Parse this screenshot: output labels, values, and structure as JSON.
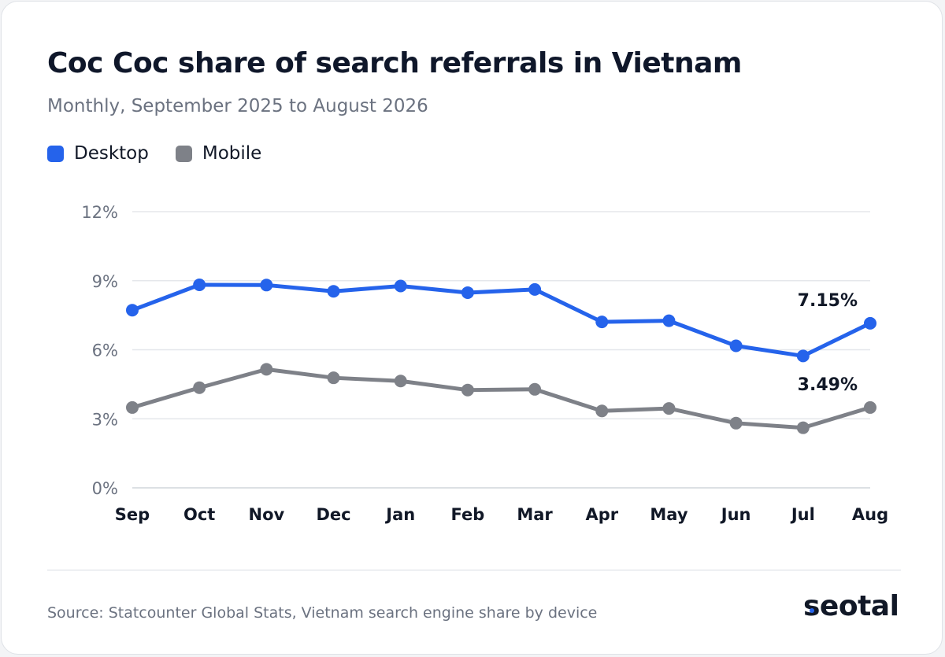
{
  "chart_data": {
    "type": "line",
    "title": "Coc Coc share of search referrals in Vietnam",
    "subtitle": "Monthly, September 2025 to August 2026",
    "categories": [
      "Sep",
      "Oct",
      "Nov",
      "Dec",
      "Jan",
      "Feb",
      "Mar",
      "Apr",
      "May",
      "Jun",
      "Jul",
      "Aug"
    ],
    "series": [
      {
        "name": "Desktop",
        "color": "#2563eb",
        "values": [
          7.72,
          8.82,
          8.81,
          8.54,
          8.77,
          8.48,
          8.62,
          7.21,
          7.26,
          6.17,
          5.73,
          7.15
        ],
        "end_label": "7.15%"
      },
      {
        "name": "Mobile",
        "color": "#7e8188",
        "values": [
          3.49,
          4.35,
          5.15,
          4.78,
          4.64,
          4.25,
          4.28,
          3.34,
          3.45,
          2.81,
          2.61,
          3.49
        ],
        "end_label": "3.49%"
      }
    ],
    "ylim": [
      0,
      12
    ],
    "yticks": [
      0,
      3,
      6,
      9,
      12
    ],
    "ytick_labels": [
      "0%",
      "3%",
      "6%",
      "9%",
      "12%"
    ],
    "grid": true,
    "legend_position": "top-left"
  },
  "footer": {
    "source": "Source: Statcounter Global Stats, Vietnam search engine share by device",
    "logo": "seotal"
  }
}
